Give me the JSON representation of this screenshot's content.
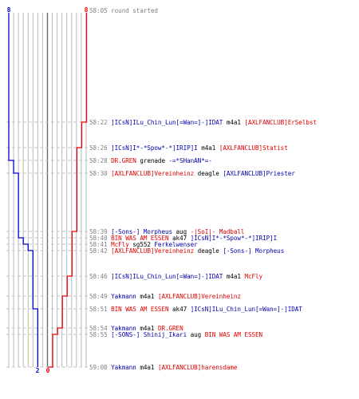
{
  "scores": {
    "blue_start": "8",
    "red_start": "8",
    "blue_end": "2",
    "red_end": "0"
  },
  "colors": {
    "blue_team": "#0000cc",
    "red_team": "#ee0000",
    "time": "#808080",
    "grid": "#b8b8b8"
  },
  "timeline": {
    "start_time": "58:05",
    "end_time": "59:00"
  },
  "events": [
    {
      "time": "58:05",
      "parts": [
        {
          "c": "gray",
          "t": "round started"
        }
      ]
    },
    {
      "time": "58:22",
      "parts": [
        {
          "c": "blue",
          "t": "]ICsN]ILu_Chin_Lun[=Wan=]-]IDAT"
        },
        {
          "c": "black",
          "t": " m4a1 "
        },
        {
          "c": "red",
          "t": "[AXLFANCLUB]ErSelbst"
        }
      ]
    },
    {
      "time": "58:26",
      "parts": [
        {
          "c": "blue",
          "t": "]ICsN]I*-*Spow*-*]IRIP]I"
        },
        {
          "c": "black",
          "t": " m4a1 "
        },
        {
          "c": "red",
          "t": "[AXLFANCLUB]Statist"
        }
      ]
    },
    {
      "time": "58:28",
      "parts": [
        {
          "c": "red",
          "t": "DR.GREN"
        },
        {
          "c": "black",
          "t": " grenade "
        },
        {
          "c": "blue",
          "t": "-=*SHanAN*=-"
        }
      ]
    },
    {
      "time": "58:30",
      "parts": [
        {
          "c": "red",
          "t": "[AXLFANCLUB]Vereinheinz"
        },
        {
          "c": "black",
          "t": " deagle "
        },
        {
          "c": "blue",
          "t": "[AXLFANCLUB]Priester"
        }
      ]
    },
    {
      "time": "58:39",
      "parts": [
        {
          "c": "blue",
          "t": "[-Sons-] Morpheus"
        },
        {
          "c": "black",
          "t": " aug "
        },
        {
          "c": "red",
          "t": "-|SoI|- Madball"
        }
      ]
    },
    {
      "time": "58:40",
      "parts": [
        {
          "c": "red",
          "t": "BIN WAS AM ESSEN"
        },
        {
          "c": "black",
          "t": " ak47 "
        },
        {
          "c": "blue",
          "t": "]ICsN]I*-*Spow*-*]IRIP]I"
        }
      ]
    },
    {
      "time": "58:41",
      "parts": [
        {
          "c": "red",
          "t": "McFly"
        },
        {
          "c": "black",
          "t": " sg552 "
        },
        {
          "c": "blue",
          "t": "Ferkelwenser"
        }
      ]
    },
    {
      "time": "58:42",
      "parts": [
        {
          "c": "red",
          "t": "[AXLFANCLUB]Vereinheinz"
        },
        {
          "c": "black",
          "t": " deagle "
        },
        {
          "c": "blue",
          "t": "[-Sons-] Morpheus"
        }
      ]
    },
    {
      "time": "58:46",
      "parts": [
        {
          "c": "blue",
          "t": "]ICsN]ILu_Chin_Lun[=Wan=]-]IDAT"
        },
        {
          "c": "black",
          "t": " m4a1 "
        },
        {
          "c": "red",
          "t": "McFly"
        }
      ]
    },
    {
      "time": "58:49",
      "parts": [
        {
          "c": "blue",
          "t": "Yakmann"
        },
        {
          "c": "black",
          "t": " m4a1 "
        },
        {
          "c": "red",
          "t": "[AXLFANCLUB]Vereinheinz"
        }
      ]
    },
    {
      "time": "58:51",
      "parts": [
        {
          "c": "red",
          "t": "BIN WAS AM ESSEN"
        },
        {
          "c": "black",
          "t": " ak47 "
        },
        {
          "c": "blue",
          "t": "]ICsN]ILu_Chin_Lun[=Wan=]-]IDAT"
        }
      ]
    },
    {
      "time": "58:54",
      "parts": [
        {
          "c": "blue",
          "t": "Yakmann"
        },
        {
          "c": "black",
          "t": " m4a1 "
        },
        {
          "c": "red",
          "t": "DR.GREN"
        }
      ]
    },
    {
      "time": "58:55",
      "parts": [
        {
          "c": "blue",
          "t": "[-SONS-] Shinij_Ikari"
        },
        {
          "c": "black",
          "t": " aug "
        },
        {
          "c": "red",
          "t": "BIN WAS AM ESSEN"
        }
      ]
    },
    {
      "time": "59:00",
      "parts": [
        {
          "c": "blue",
          "t": "Yakmann"
        },
        {
          "c": "black",
          "t": " m4a1 "
        },
        {
          "c": "red",
          "t": "[AXLFANCLUB]harensdame"
        }
      ]
    }
  ]
}
